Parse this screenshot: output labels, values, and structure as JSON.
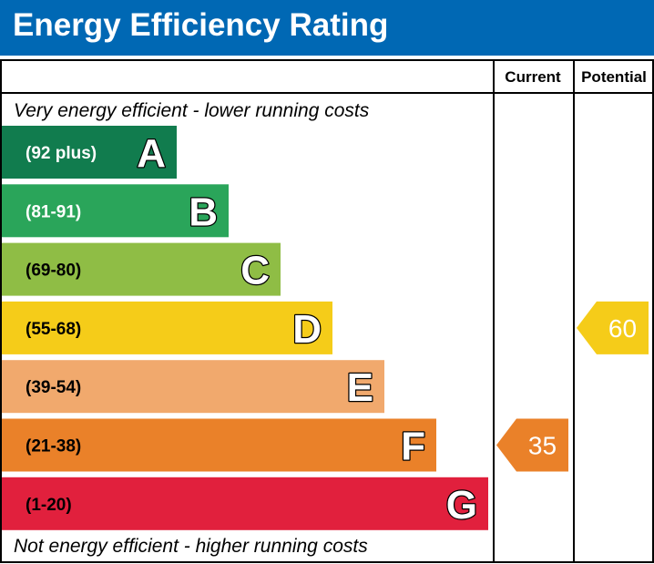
{
  "title": "Energy Efficiency Rating",
  "columns": {
    "current": "Current",
    "potential": "Potential"
  },
  "captions": {
    "top": "Very energy efficient - lower running costs",
    "bottom": "Not energy efficient - higher running costs"
  },
  "chart_data": {
    "type": "bar",
    "title": "Energy Efficiency Rating",
    "bands": [
      {
        "letter": "A",
        "range": "(92 plus)",
        "min": 92,
        "max": 100,
        "color": "#117c4e",
        "label_color": "#ffffff"
      },
      {
        "letter": "B",
        "range": "(81-91)",
        "min": 81,
        "max": 91,
        "color": "#2aa55a",
        "label_color": "#ffffff"
      },
      {
        "letter": "C",
        "range": "(69-80)",
        "min": 69,
        "max": 80,
        "color": "#8fbd45",
        "label_color": "#000000"
      },
      {
        "letter": "D",
        "range": "(55-68)",
        "min": 55,
        "max": 68,
        "color": "#f5cc19",
        "label_color": "#000000"
      },
      {
        "letter": "E",
        "range": "(39-54)",
        "min": 39,
        "max": 54,
        "color": "#f1a96d",
        "label_color": "#000000"
      },
      {
        "letter": "F",
        "range": "(21-38)",
        "min": 21,
        "max": 38,
        "color": "#ea8129",
        "label_color": "#000000"
      },
      {
        "letter": "G",
        "range": "(1-20)",
        "min": 1,
        "max": 20,
        "color": "#e1203d",
        "label_color": "#000000"
      }
    ],
    "ratings": [
      {
        "name": "Current",
        "value": 35,
        "band": "F",
        "color": "#ea8129"
      },
      {
        "name": "Potential",
        "value": 60,
        "band": "D",
        "color": "#f5cc19"
      }
    ]
  }
}
